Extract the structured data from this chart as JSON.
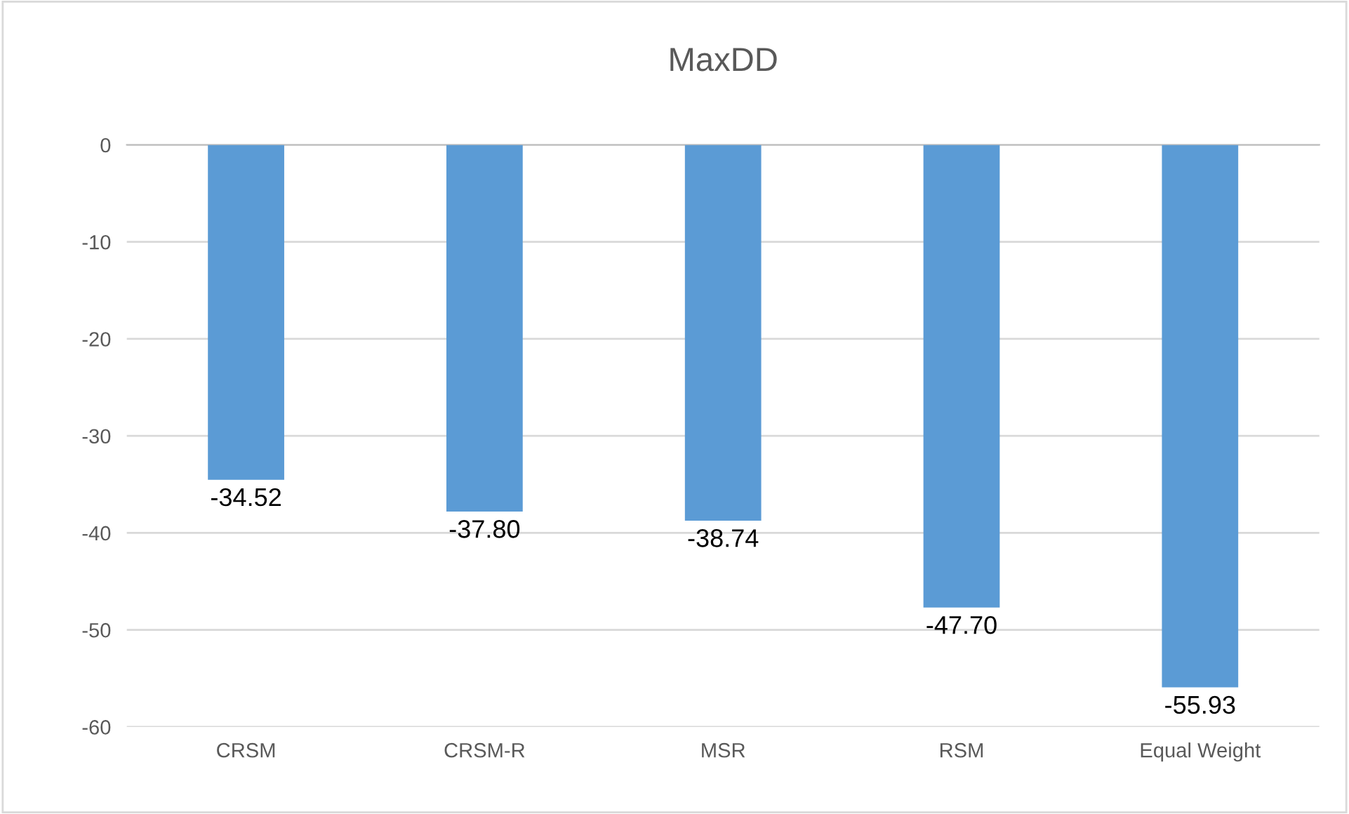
{
  "chart_data": {
    "type": "bar",
    "title": "MaxDD",
    "categories": [
      "CRSM",
      "CRSM-R",
      "MSR",
      "RSM",
      "Equal Weight"
    ],
    "values": [
      -34.52,
      -37.8,
      -38.74,
      -47.7,
      -55.93
    ],
    "value_labels": [
      "-34.52",
      "-37.80",
      "-38.74",
      "-47.70",
      "-55.93"
    ],
    "color": "#5b9bd5",
    "ylim": [
      -60,
      0
    ],
    "yticks": [
      0,
      -10,
      -20,
      -30,
      -40,
      -50,
      -60
    ],
    "grid": "y"
  }
}
